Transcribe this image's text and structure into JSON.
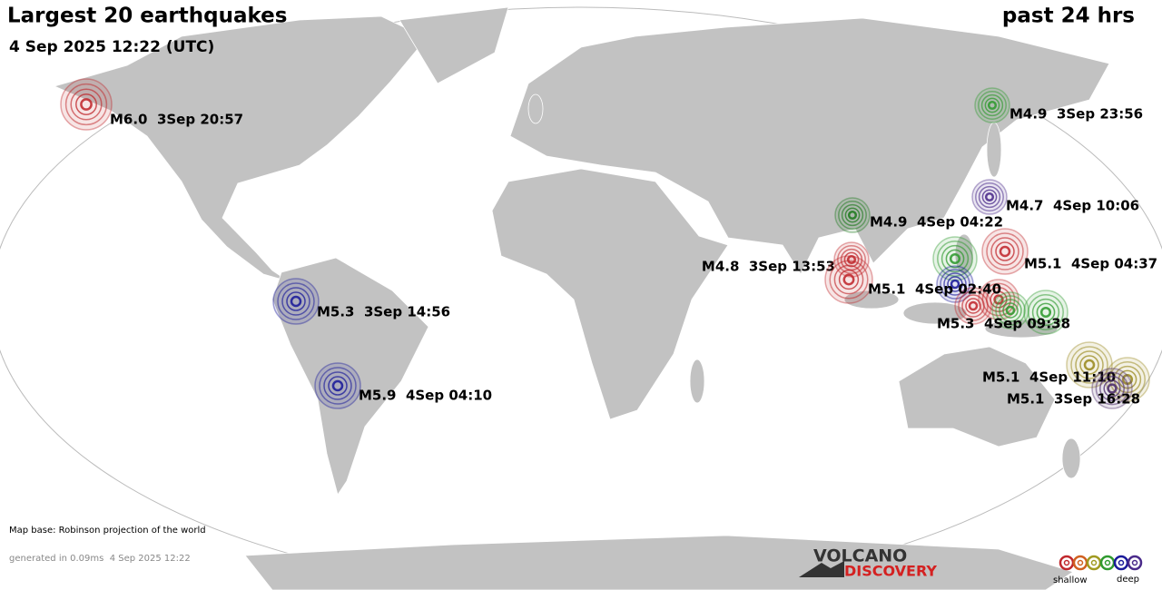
{
  "header": {
    "title": "Largest 20 earthquakes",
    "period": "past 24 hrs",
    "timestamp": "4 Sep 2025 12:22 (UTC)"
  },
  "earthquakes": [
    {
      "label": "M6.0  3Sep 20:57",
      "color": "#c0282d"
    },
    {
      "label": "M4.9  3Sep 23:56",
      "color": "#2f9a2f"
    },
    {
      "label": "M4.7  4Sep 10:06",
      "color": "#4a2a8a"
    },
    {
      "label": "M4.9  4Sep 04:22",
      "color": "#1f7a1f"
    },
    {
      "label": "M5.1  4Sep 04:37",
      "color": "#c0282d"
    },
    {
      "label": "M4.8  3Sep 13:53",
      "color": "#c0282d"
    },
    {
      "label": "M5.1  4Sep 02:40",
      "color": "#c0282d"
    },
    {
      "label": "M5.3  4Sep 09:38",
      "color": "#c0282d"
    },
    {
      "label": "M5.3  3Sep 14:56",
      "color": "#1a1a9a"
    },
    {
      "label": "M5.9  4Sep 04:10",
      "color": "#1a1a9a"
    },
    {
      "label": "M5.1  4Sep 11:10",
      "color": "#9a8a20"
    },
    {
      "label": "M5.1  3Sep 16:28",
      "color": "#4a2a6a"
    }
  ],
  "footer": {
    "map_base": "Map base: Robinson projection of the world",
    "generated": "generated in 0.09ms  4 Sep 2025 12:22"
  },
  "logo": {
    "line1": "VOLCANO",
    "line2": "DISCOVERY"
  },
  "legend": {
    "shallow": "shallow",
    "deep": "deep"
  }
}
